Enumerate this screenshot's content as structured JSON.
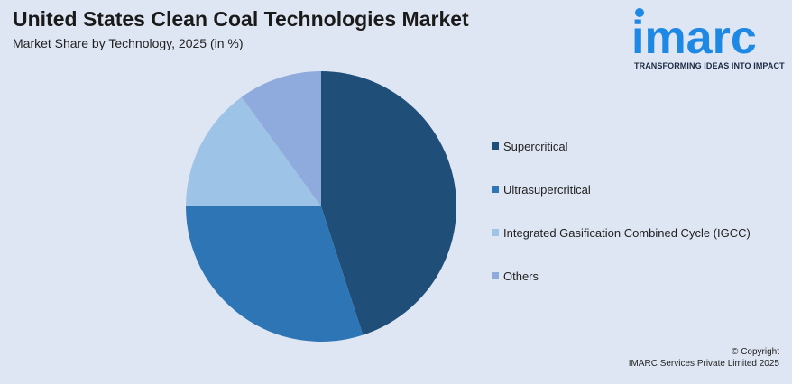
{
  "header": {
    "title": "United States Clean Coal Technologies Market",
    "subtitle": "Market Share by Technology, 2025 (in %)"
  },
  "logo": {
    "wordmark": "imarc",
    "tagline": "TRANSFORMING IDEAS INTO IMPACT",
    "color": "#1e88e5"
  },
  "chart_data": {
    "type": "pie",
    "title": "United States Clean Coal Technologies Market",
    "subtitle": "Market Share by Technology, 2025 (in %)",
    "legend_position": "right",
    "slices": [
      {
        "label": "Supercritical",
        "value": 45,
        "color": "#1f4e79"
      },
      {
        "label": "Ultrasupercritical",
        "value": 30,
        "color": "#2e75b6"
      },
      {
        "label": "Integrated Gasification Combined Cycle (IGCC)",
        "value": 15,
        "color": "#9dc3e6"
      },
      {
        "label": "Others",
        "value": 10,
        "color": "#8faadc"
      }
    ]
  },
  "footer": {
    "copyright_line1": "© Copyright",
    "copyright_line2": "IMARC Services Private Limited 2025"
  }
}
